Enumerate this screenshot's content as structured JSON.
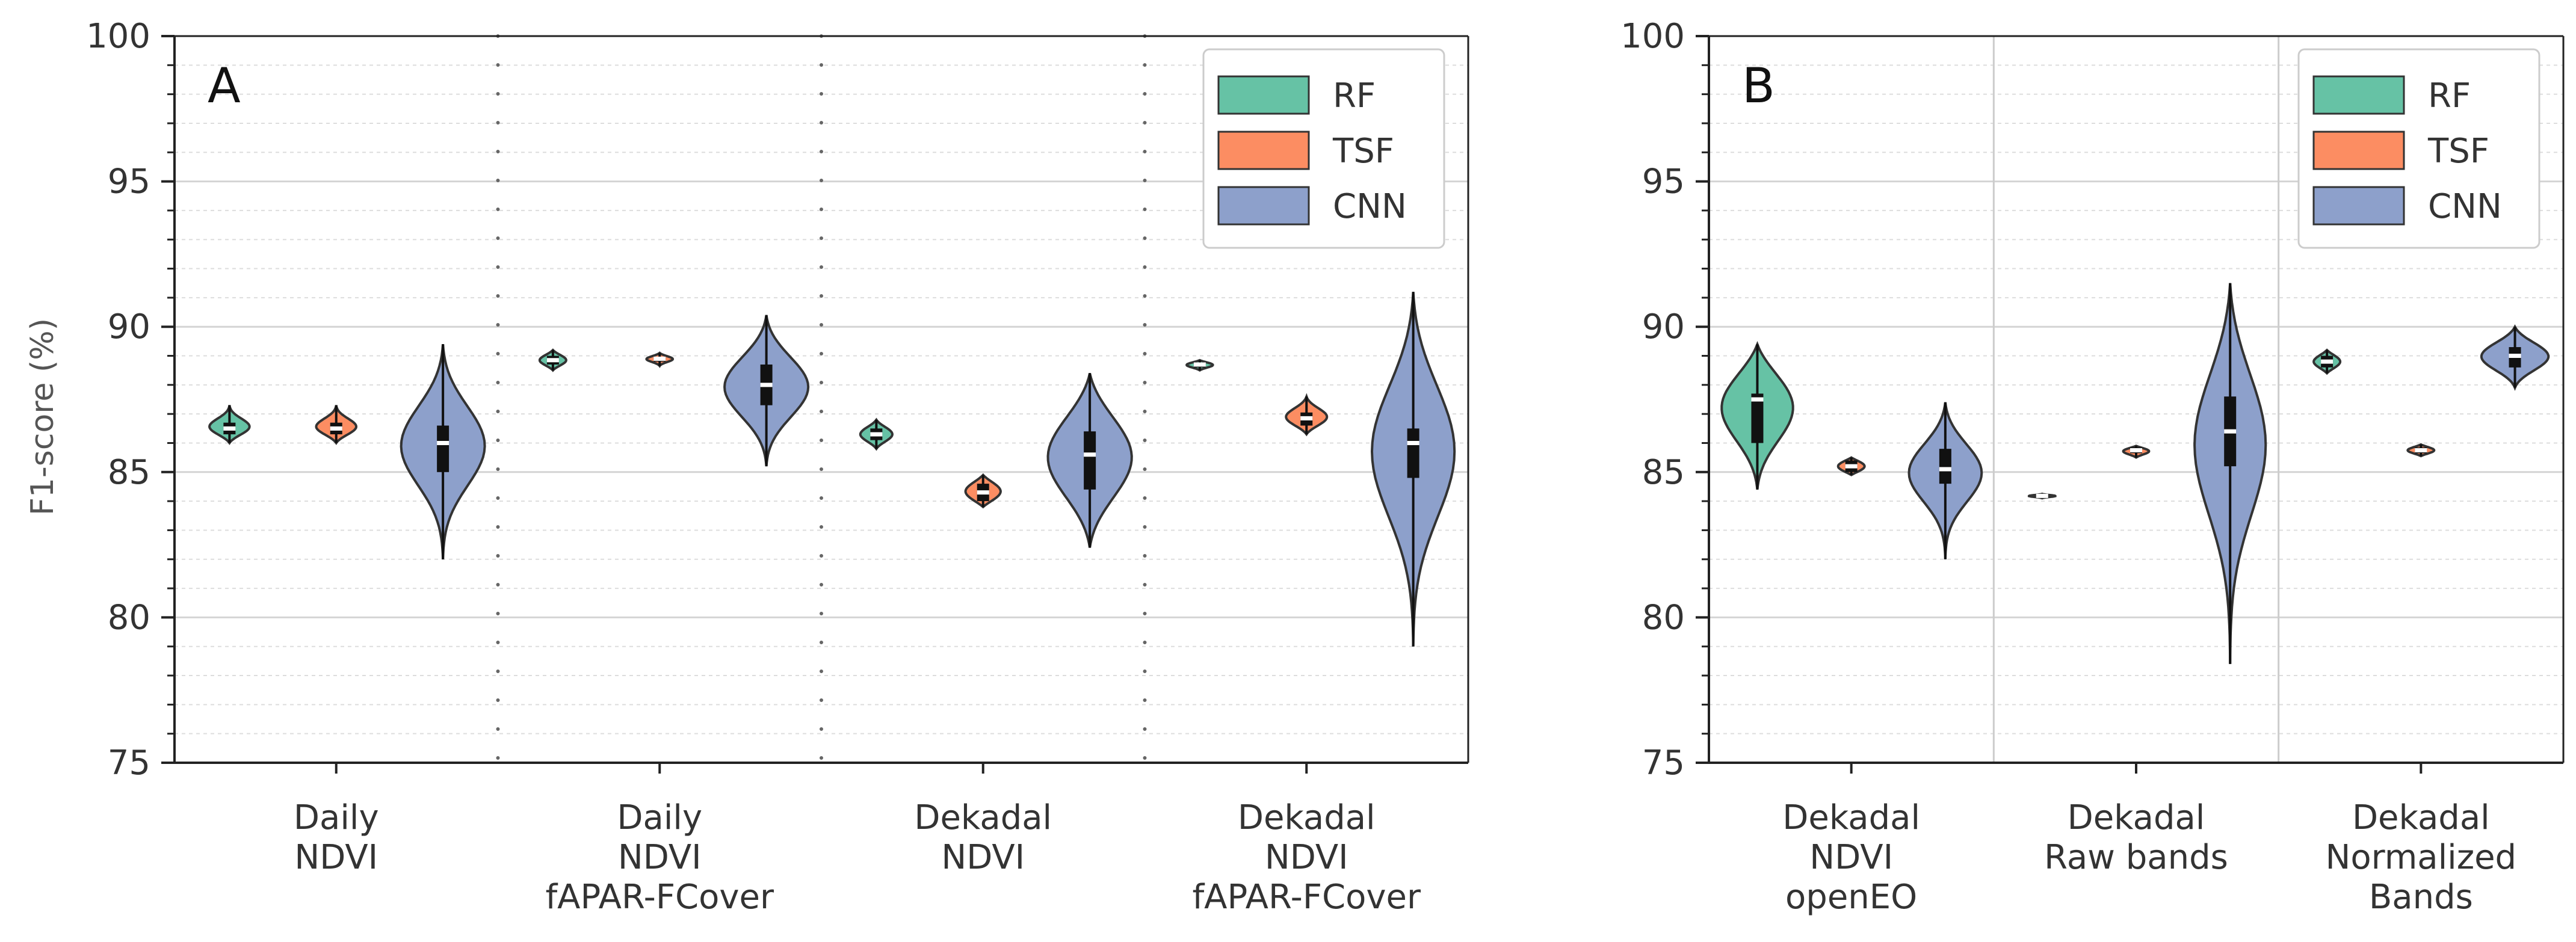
{
  "chart_data": [
    {
      "type": "violin",
      "panel": "A",
      "ylabel": "F1-score (%)",
      "ylim": [
        75,
        100
      ],
      "yticks": [
        75,
        80,
        85,
        90,
        95,
        100
      ],
      "categories": [
        {
          "lines": [
            "Daily",
            "NDVI"
          ]
        },
        {
          "lines": [
            "Daily",
            "NDVI",
            "fAPAR-FCover"
          ]
        },
        {
          "lines": [
            "Dekadal",
            "NDVI"
          ]
        },
        {
          "lines": [
            "Dekadal",
            "NDVI",
            "fAPAR-FCover"
          ]
        }
      ],
      "legend": {
        "position": "top-right",
        "entries": [
          "RF",
          "TSF",
          "CNN"
        ]
      },
      "series": [
        {
          "name": "RF",
          "color": "#66c2a5",
          "violins": [
            {
              "min": 86.0,
              "max": 87.3,
              "q1": 86.3,
              "median": 86.5,
              "q3": 86.7
            },
            {
              "min": 88.5,
              "max": 89.2,
              "q1": 88.7,
              "median": 88.85,
              "q3": 89.0
            },
            {
              "min": 85.8,
              "max": 86.8,
              "q1": 86.1,
              "median": 86.3,
              "q3": 86.5
            },
            {
              "min": 88.5,
              "max": 88.85,
              "q1": 88.6,
              "median": 88.7,
              "q3": 88.75
            }
          ]
        },
        {
          "name": "TSF",
          "color": "#fc8d62",
          "violins": [
            {
              "min": 86.0,
              "max": 87.3,
              "q1": 86.3,
              "median": 86.5,
              "q3": 86.7
            },
            {
              "min": 88.65,
              "max": 89.1,
              "q1": 88.8,
              "median": 88.9,
              "q3": 88.95
            },
            {
              "min": 83.8,
              "max": 84.9,
              "q1": 84.0,
              "median": 84.3,
              "q3": 84.6
            },
            {
              "min": 86.3,
              "max": 87.6,
              "q1": 86.6,
              "median": 86.85,
              "q3": 87.05
            }
          ]
        },
        {
          "name": "CNN",
          "color": "#8da0cb",
          "violins": [
            {
              "min": 82.0,
              "max": 89.4,
              "q1": 85.0,
              "median": 86.0,
              "q3": 86.6
            },
            {
              "min": 85.2,
              "max": 90.4,
              "q1": 87.3,
              "median": 88.0,
              "q3": 88.7
            },
            {
              "min": 82.4,
              "max": 88.4,
              "q1": 84.4,
              "median": 85.6,
              "q3": 86.4
            },
            {
              "min": 79.0,
              "max": 91.2,
              "q1": 84.8,
              "median": 86.0,
              "q3": 86.5
            }
          ]
        }
      ]
    },
    {
      "type": "violin",
      "panel": "B",
      "ylabel": "",
      "ylim": [
        75,
        100
      ],
      "yticks": [
        75,
        80,
        85,
        90,
        95,
        100
      ],
      "categories": [
        {
          "lines": [
            "Dekadal",
            "NDVI",
            "openEO"
          ]
        },
        {
          "lines": [
            "Dekadal",
            "Raw bands"
          ]
        },
        {
          "lines": [
            "Dekadal",
            "Normalized",
            "Bands"
          ]
        }
      ],
      "legend": {
        "position": "top-right",
        "entries": [
          "RF",
          "TSF",
          "CNN"
        ]
      },
      "series": [
        {
          "name": "RF",
          "color": "#66c2a5",
          "violins": [
            {
              "min": 84.4,
              "max": 89.4,
              "q1": 86.0,
              "median": 87.5,
              "q3": 87.7
            },
            {
              "min": 84.1,
              "max": 84.25,
              "q1": 84.15,
              "median": 84.18,
              "q3": 84.2
            },
            {
              "min": 88.4,
              "max": 89.2,
              "q1": 88.6,
              "median": 88.8,
              "q3": 89.0
            }
          ]
        },
        {
          "name": "TSF",
          "color": "#fc8d62",
          "violins": [
            {
              "min": 84.9,
              "max": 85.5,
              "q1": 85.0,
              "median": 85.2,
              "q3": 85.4
            },
            {
              "min": 85.5,
              "max": 85.9,
              "q1": 85.65,
              "median": 85.75,
              "q3": 85.85
            },
            {
              "min": 85.55,
              "max": 85.95,
              "q1": 85.65,
              "median": 85.75,
              "q3": 85.85
            }
          ]
        },
        {
          "name": "CNN",
          "color": "#8da0cb",
          "violins": [
            {
              "min": 82.0,
              "max": 87.4,
              "q1": 84.6,
              "median": 85.1,
              "q3": 85.8
            },
            {
              "min": 78.4,
              "max": 91.5,
              "q1": 85.2,
              "median": 86.4,
              "q3": 87.6
            },
            {
              "min": 87.9,
              "max": 90.0,
              "q1": 88.6,
              "median": 89.0,
              "q3": 89.3
            }
          ]
        }
      ]
    }
  ]
}
